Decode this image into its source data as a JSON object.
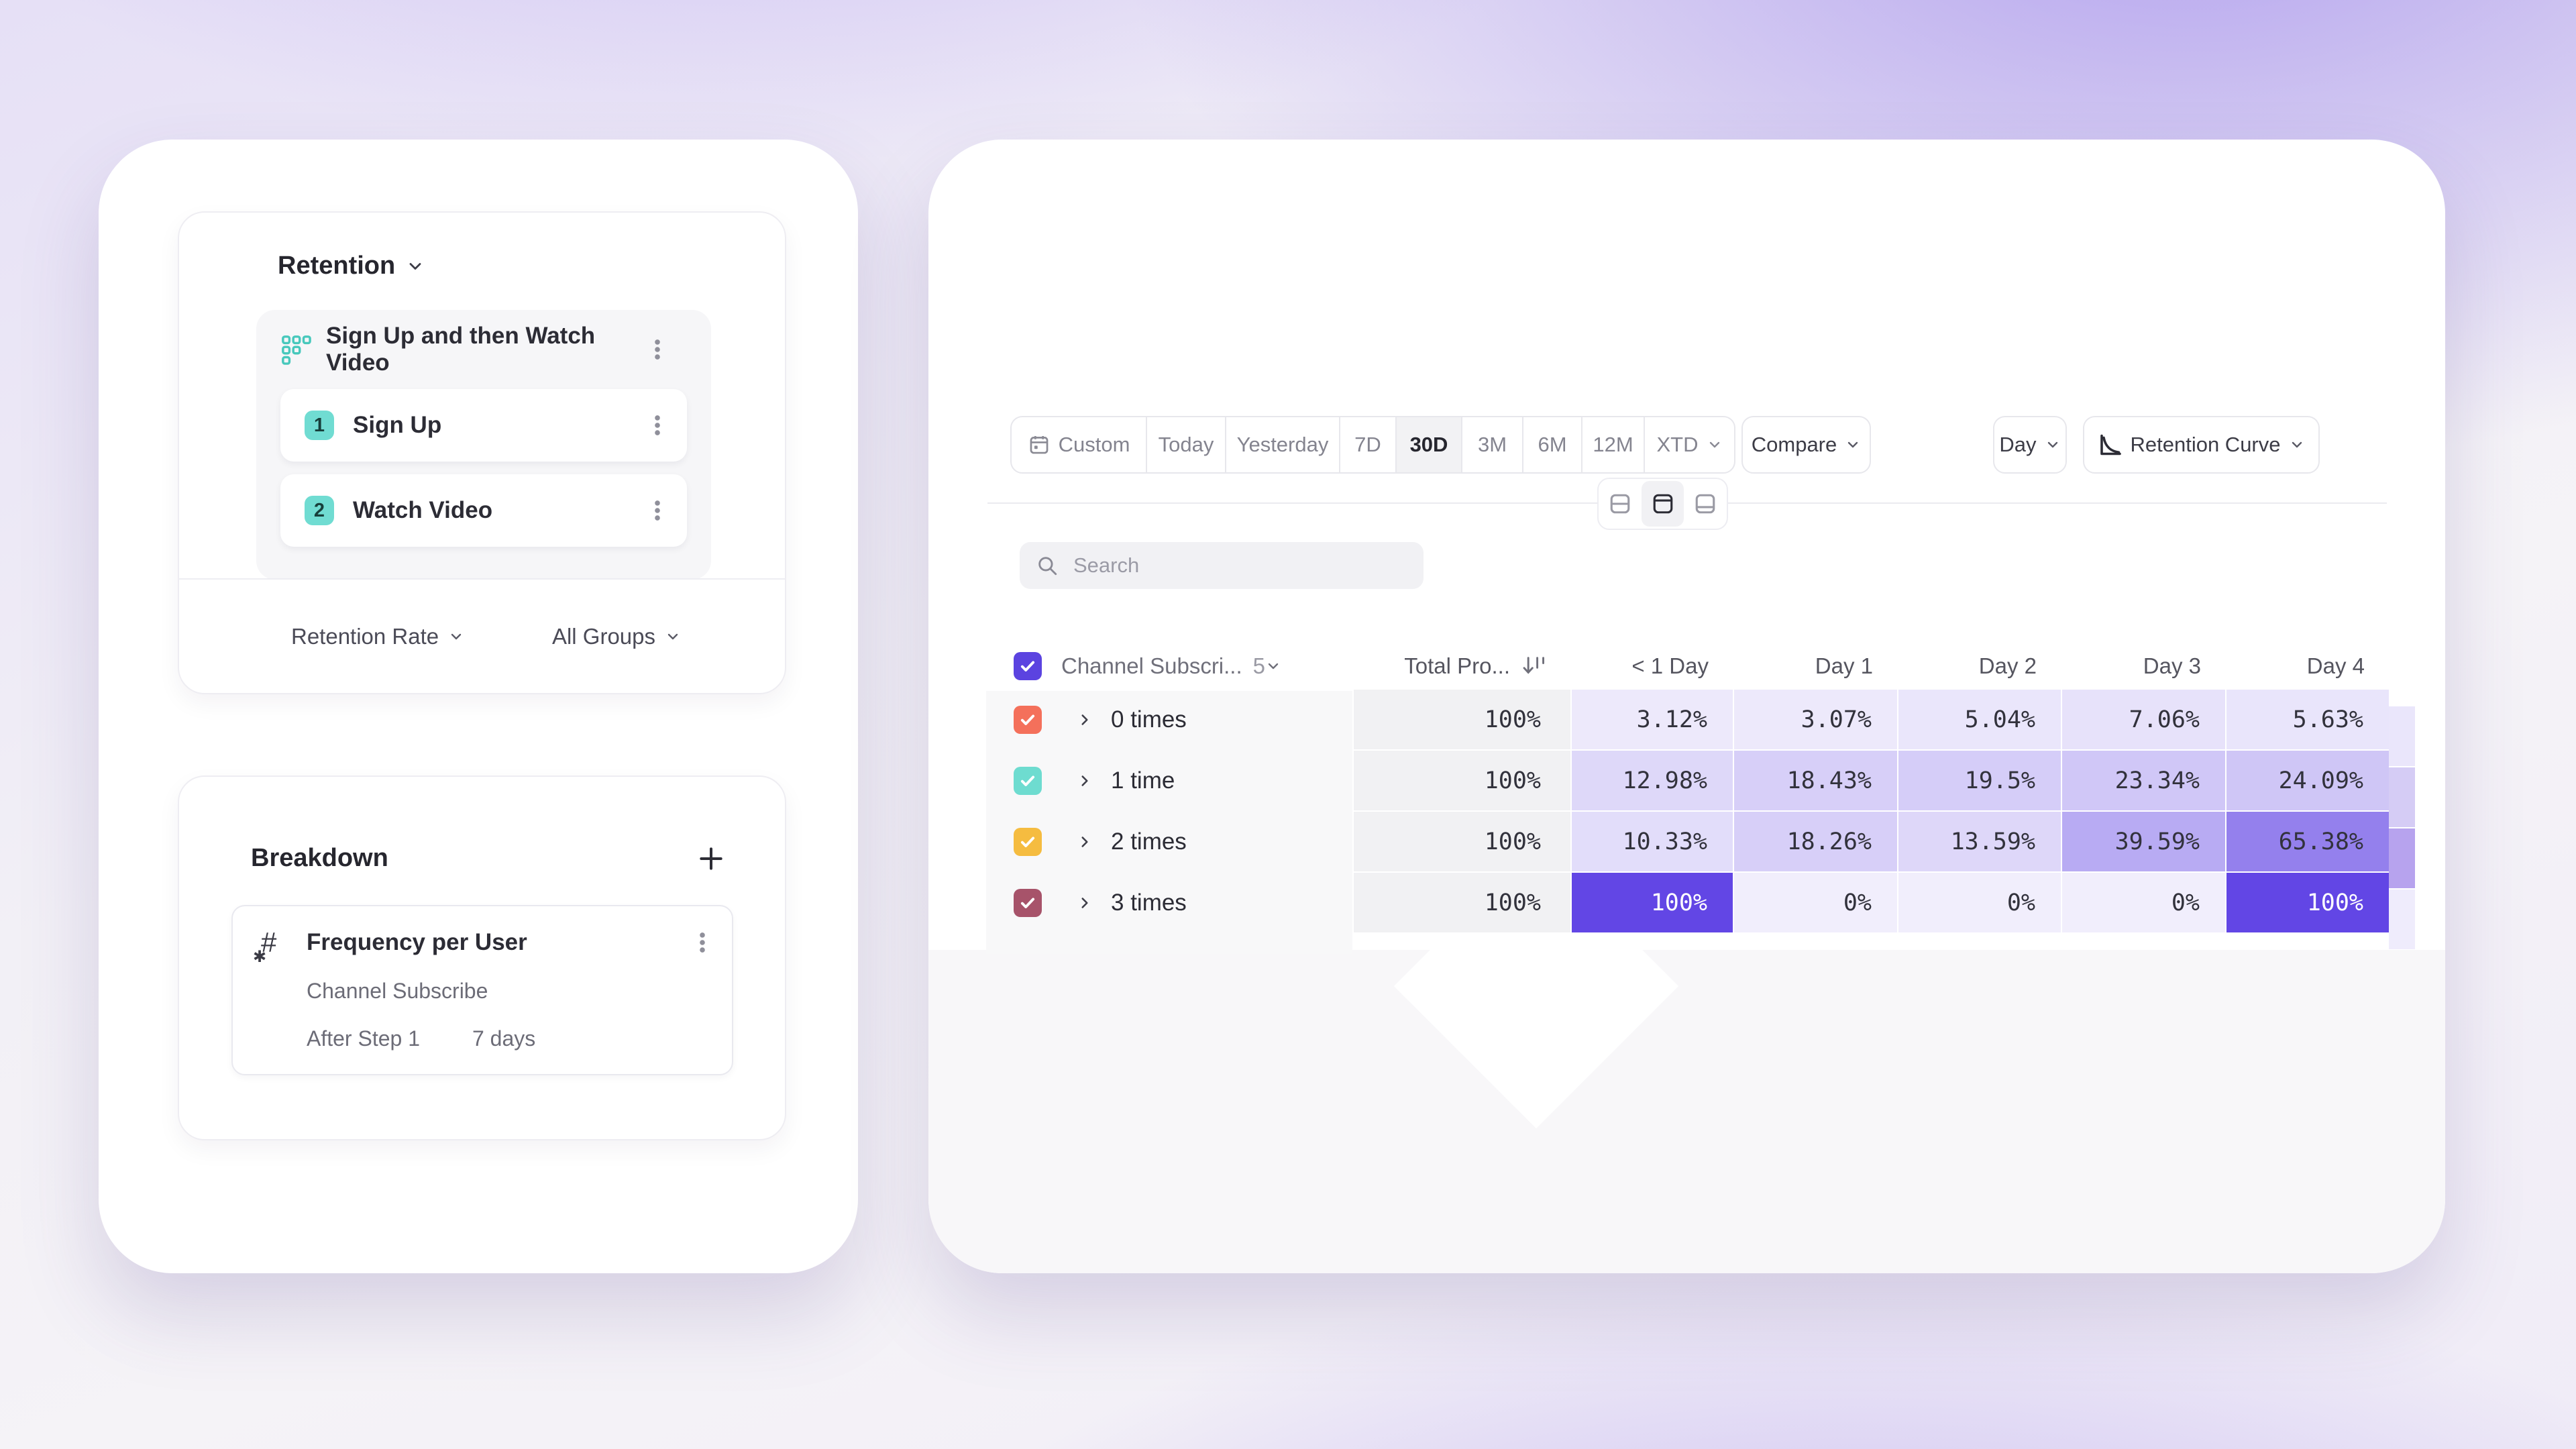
{
  "app": {
    "accent_color": "#6246e5"
  },
  "left_panel": {
    "retention": {
      "title": "Retention",
      "funnel_title": "Sign Up and then Watch Video",
      "steps": [
        {
          "number": "1",
          "label": "Sign Up"
        },
        {
          "number": "2",
          "label": "Watch Video"
        }
      ],
      "metric_label": "Retention Rate",
      "groups_label": "All Groups"
    },
    "breakdown": {
      "title": "Breakdown",
      "item": {
        "title": "Frequency per User",
        "event": "Channel Subscribe",
        "after_step": "After Step 1",
        "window": "7 days"
      }
    }
  },
  "toolbar": {
    "date_ranges": [
      "Custom",
      "Today",
      "Yesterday",
      "7D",
      "30D",
      "3M",
      "6M",
      "12M",
      "XTD"
    ],
    "selected_range": "30D",
    "compare_label": "Compare",
    "granularity_label": "Day",
    "view_label": "Retention Curve"
  },
  "search": {
    "placeholder": "Search"
  },
  "table": {
    "group_header": {
      "label": "Channel Subscri...",
      "count": "5"
    },
    "total_column_header": "Total Pro...",
    "day_columns": [
      "< 1 Day",
      "Day 1",
      "Day 2",
      "Day 3",
      "Day 4"
    ],
    "rows": [
      {
        "label": "0 times",
        "checkbox_color": "#f4705b",
        "total": "100%",
        "values": [
          "3.12%",
          "3.07%",
          "5.04%",
          "7.06%",
          "5.63%"
        ]
      },
      {
        "label": "1 time",
        "checkbox_color": "#6edcd0",
        "total": "100%",
        "values": [
          "12.98%",
          "18.43%",
          "19.5%",
          "23.34%",
          "24.09%"
        ]
      },
      {
        "label": "2 times",
        "checkbox_color": "#f5bc40",
        "total": "100%",
        "values": [
          "10.33%",
          "18.26%",
          "13.59%",
          "39.59%",
          "65.38%"
        ]
      },
      {
        "label": "3 times",
        "checkbox_color": "#a7536a",
        "total": "100%",
        "values": [
          "100%",
          "0%",
          "0%",
          "0%",
          "100%"
        ]
      }
    ],
    "overflow_column_colors": [
      "#eae6fb",
      "#d5ccf5",
      "#b7a3ee",
      "#efecfc"
    ],
    "heat_scale": {
      "low": "#f1eefc",
      "high": "#6246e5"
    },
    "header_checkbox_color": "#5b43e0"
  },
  "icons": {
    "funnel": "grid-dots-icon",
    "breakdown_item": "hash-icon",
    "date_picker": "calendar-icon",
    "chart_type": "retention-curve-icon",
    "sort": "sort-descending-icon",
    "search": "magnifier-icon",
    "add": "plus-icon",
    "menu": "kebab-icon"
  }
}
